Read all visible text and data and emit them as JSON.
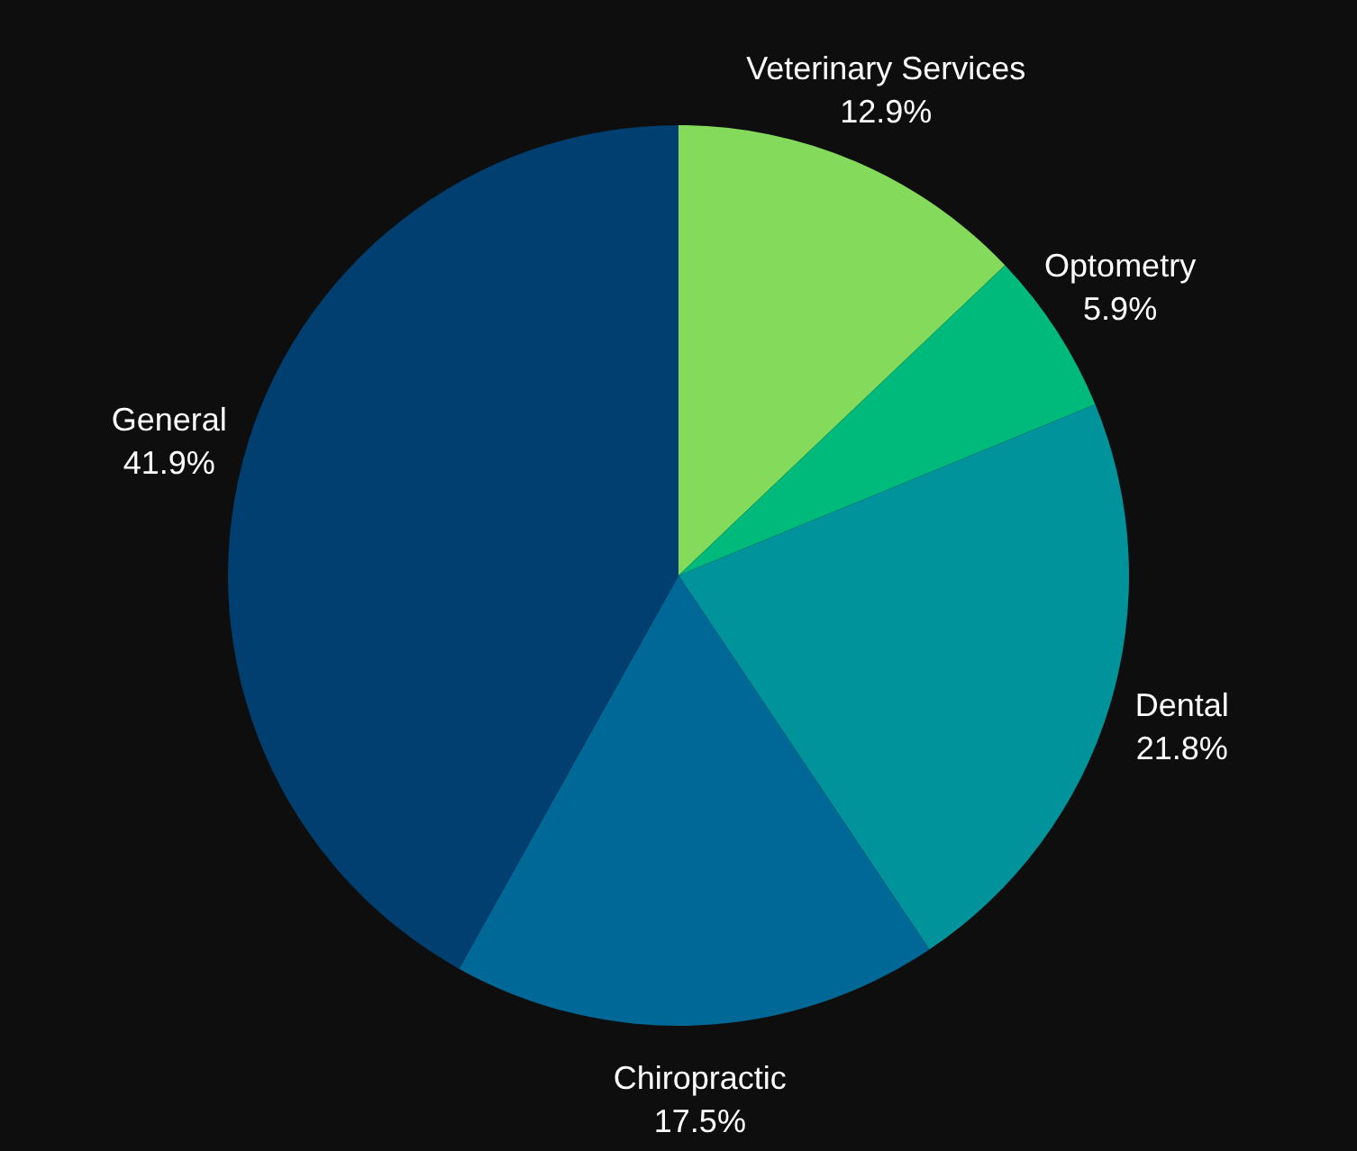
{
  "chart_data": {
    "type": "pie",
    "categories": [
      "Veterinary Services",
      "Optometry",
      "Dental",
      "Chiropractic",
      "General"
    ],
    "values": [
      12.9,
      5.9,
      21.8,
      17.5,
      41.9
    ],
    "value_labels": [
      "12.9%",
      "5.9%",
      "21.8%",
      "17.5%",
      "41.9%"
    ],
    "colors": [
      "#84da5b",
      "#00ba7c",
      "#00939b",
      "#006896",
      "#003f6f"
    ],
    "legend": false
  }
}
